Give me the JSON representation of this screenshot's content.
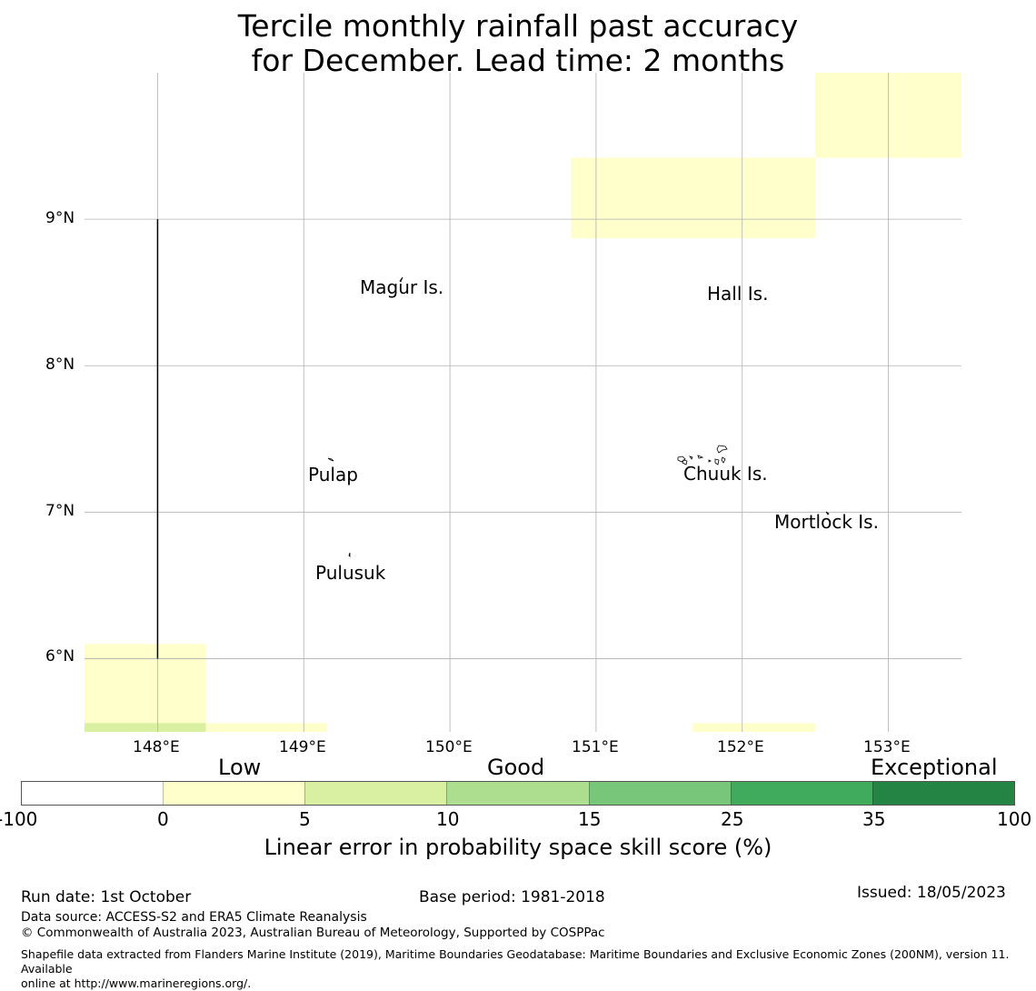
{
  "title": {
    "line1": "Tercile monthly rainfall past accuracy",
    "line2": "for December. Lead time: 2 months"
  },
  "map": {
    "lat_labels": [
      "9°N",
      "8°N",
      "7°N",
      "6°N"
    ],
    "lon_labels": [
      "148°E",
      "149°E",
      "150°E",
      "151°E",
      "152°E",
      "153°E"
    ],
    "extent": {
      "lon_min": 147.5,
      "lon_max": 153.5,
      "lat_min": 5.5,
      "lat_max": 10.0
    },
    "places": [
      {
        "name": "Magur Is.",
        "lon": 149.68,
        "lat": 8.57
      },
      {
        "name": "Hall Is.",
        "lon": 151.97,
        "lat": 8.53
      },
      {
        "name": "Pulap",
        "lon": 149.2,
        "lat": 7.27
      },
      {
        "name": "Chuuk Is.",
        "lon": 151.85,
        "lat": 7.28
      },
      {
        "name": "Mortlock Is.",
        "lon": 152.58,
        "lat": 6.95
      },
      {
        "name": "Pulusuk",
        "lon": 149.32,
        "lat": 6.6
      }
    ],
    "skill_cells": [
      {
        "lon0": 153.1,
        "lon1": 153.5,
        "lat0": 9.42,
        "lat1": 10.0,
        "class": "low"
      },
      {
        "lon0": 152.5,
        "lon1": 153.1,
        "lat0": 9.42,
        "lat1": 10.0,
        "class": "low"
      },
      {
        "lon0": 150.83,
        "lon1": 152.5,
        "lat0": 8.87,
        "lat1": 9.42,
        "class": "low"
      },
      {
        "lon0": 147.5,
        "lon1": 148.33,
        "lat0": 5.5,
        "lat1": 6.1,
        "class": "low"
      },
      {
        "lon0": 147.5,
        "lon1": 148.33,
        "lat0": 5.5,
        "lat1": 5.56,
        "class": "good"
      },
      {
        "lon0": 148.33,
        "lon1": 149.16,
        "lat0": 5.5,
        "lat1": 5.56,
        "class": "low"
      },
      {
        "lon0": 151.66,
        "lon1": 152.5,
        "lat0": 5.5,
        "lat1": 5.56,
        "class": "low"
      }
    ],
    "boundary_line": {
      "lon": 148.0,
      "lat0": 6.0,
      "lat1": 9.0
    }
  },
  "colorbar": {
    "categories": [
      "Low",
      "Good",
      "Exceptional"
    ],
    "ticks": [
      "-100",
      "0",
      "5",
      "10",
      "15",
      "25",
      "35",
      "100"
    ],
    "colors": [
      "#ffffff",
      "#ffffcc",
      "#d9f0a3",
      "#addd8e",
      "#78c679",
      "#41ab5d",
      "#238443"
    ],
    "title": "Linear error in probability space skill score (%)"
  },
  "colors": {
    "low": "#ffffcc",
    "good": "#d9f0a3",
    "grid": "#b0b0b0"
  },
  "footer": {
    "run_date": "Run date: 1st October",
    "base_period": "Base period: 1981-2018",
    "issued": "Issued: 18/05/2023",
    "data_source": "Data source: ACCESS-S2 and ERA5 Climate Reanalysis",
    "copyright": "© Commonwealth of Australia 2023, Australian Bureau of Meteorology, Supported by COSPPac",
    "shapefile_line1": "Shapefile data extracted from Flanders Marine Institute (2019), Maritime Boundaries Geodatabase: Maritime Boundaries and Exclusive Economic Zones (200NM), version 11. Available",
    "shapefile_line2": "online at http://www.marineregions.org/."
  }
}
